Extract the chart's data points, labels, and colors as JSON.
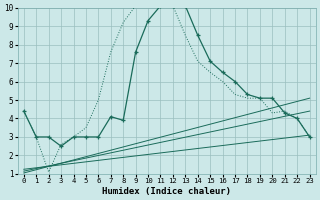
{
  "xlabel": "Humidex (Indice chaleur)",
  "xlim": [
    -0.5,
    23.5
  ],
  "ylim": [
    1,
    10
  ],
  "xticks": [
    0,
    1,
    2,
    3,
    4,
    5,
    6,
    7,
    8,
    9,
    10,
    11,
    12,
    13,
    14,
    15,
    16,
    17,
    18,
    19,
    20,
    21,
    22,
    23
  ],
  "yticks": [
    1,
    2,
    3,
    4,
    5,
    6,
    7,
    8,
    9,
    10
  ],
  "bg_color": "#cce8e8",
  "grid_color": "#9bbfbf",
  "line_color": "#1a6b5a",
  "main_x": [
    0,
    1,
    2,
    3,
    4,
    5,
    6,
    7,
    8,
    9,
    10,
    11,
    12,
    13,
    14,
    15,
    16,
    17,
    18,
    19,
    20,
    21,
    22,
    23
  ],
  "main_y": [
    4.4,
    3.0,
    3.0,
    2.5,
    3.0,
    3.0,
    3.0,
    4.1,
    3.9,
    7.6,
    9.3,
    10.1,
    10.1,
    10.1,
    8.5,
    7.1,
    6.5,
    6.0,
    5.3,
    5.1,
    5.1,
    4.3,
    4.0,
    3.0
  ],
  "dot_x": [
    0,
    1,
    2,
    3,
    4,
    5,
    6,
    7,
    8,
    9,
    10,
    11,
    12,
    13,
    14,
    15,
    16,
    17,
    18,
    19,
    20,
    21,
    22,
    23
  ],
  "dot_y": [
    4.4,
    3.0,
    1.1,
    2.6,
    3.0,
    3.5,
    5.0,
    7.6,
    9.2,
    10.1,
    10.1,
    10.1,
    10.1,
    8.5,
    7.1,
    6.5,
    6.0,
    5.3,
    5.1,
    5.1,
    4.3,
    4.4,
    4.0,
    3.0
  ],
  "line1_x": [
    0,
    23
  ],
  "line1_y": [
    1.05,
    5.1
  ],
  "line2_x": [
    0,
    23
  ],
  "line2_y": [
    1.15,
    4.4
  ],
  "line3_x": [
    0,
    23
  ],
  "line3_y": [
    1.25,
    3.1
  ]
}
